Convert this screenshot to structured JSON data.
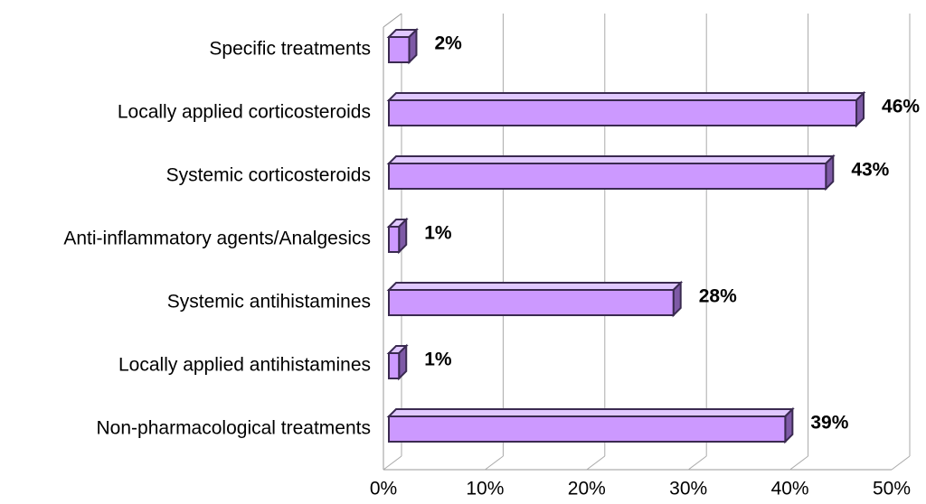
{
  "chart_data": {
    "type": "bar",
    "orientation": "horizontal",
    "categories": [
      "Specific treatments",
      "Locally applied corticosteroids",
      "Systemic corticosteroids",
      "Anti-inflammatory agents/Analgesics",
      "Systemic antihistamines",
      "Locally applied antihistamines",
      "Non-pharmacological treatments"
    ],
    "values": [
      2,
      46,
      43,
      1,
      28,
      1,
      39
    ],
    "value_labels": [
      "2%",
      "46%",
      "43%",
      "1%",
      "28%",
      "1%",
      "39%"
    ],
    "color": "#cc99ff",
    "xlim": [
      0,
      50
    ],
    "xticks": [
      {
        "value": 0,
        "label": "0%"
      },
      {
        "value": 10,
        "label": "10%"
      },
      {
        "value": 20,
        "label": "20%"
      },
      {
        "value": 30,
        "label": "30%"
      },
      {
        "value": 40,
        "label": "40%"
      },
      {
        "value": 50,
        "label": "50%"
      }
    ],
    "grid": true
  }
}
